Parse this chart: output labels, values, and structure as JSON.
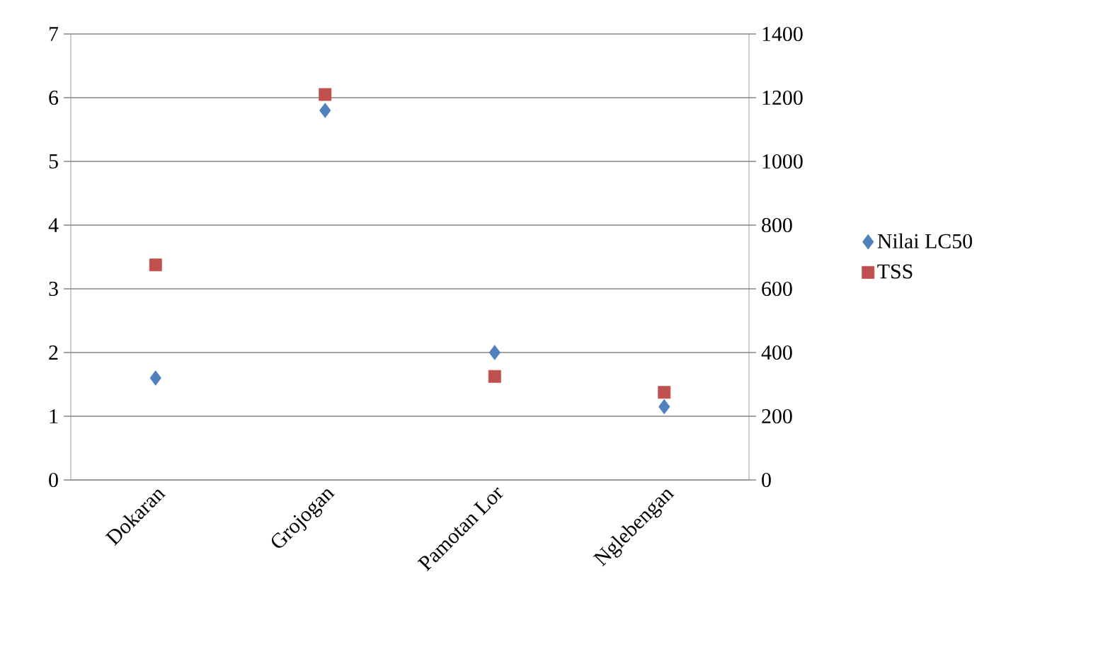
{
  "chart_data": {
    "type": "scatter",
    "categories": [
      "Dokaran",
      "Grojogan",
      "Pamotan Lor",
      "Nglebengan"
    ],
    "series": [
      {
        "name": "Nilai LC50",
        "color": "#4f81bd",
        "marker": "diamond",
        "values": [
          1.6,
          5.8,
          2.0,
          1.15
        ]
      },
      {
        "name": "TSS",
        "color": "#c0504d",
        "marker": "square",
        "axis": "y2",
        "values": [
          675,
          1210,
          325,
          275
        ]
      }
    ],
    "ylim": [
      0,
      7
    ],
    "yticks": [
      0,
      1,
      2,
      3,
      4,
      5,
      6,
      7
    ],
    "y2lim": [
      0,
      1400
    ],
    "y2ticks": [
      0,
      200,
      400,
      600,
      800,
      1000,
      1200,
      1400
    ],
    "grid": "y",
    "legend": "right"
  }
}
